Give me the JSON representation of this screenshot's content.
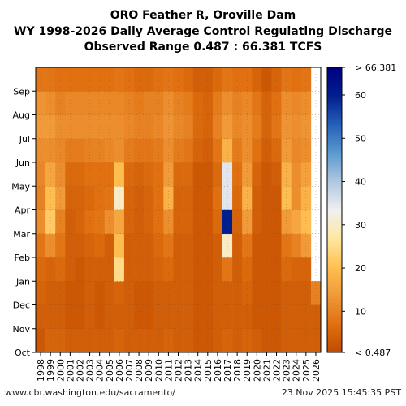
{
  "header": {
    "title_line1": "ORO Feather R, Oroville Dam",
    "title_line2": "WY 1998-2026 Daily Average Control Regulating Discharge",
    "title_line3": "Observed Range 0.487 : 66.381 TCFS"
  },
  "footer": {
    "source": "www.cbr.washington.edu/sacramento/",
    "timestamp": "23 Nov 2025 15:45:35 PST"
  },
  "chart_data": {
    "type": "heatmap",
    "title": "ORO Feather R, Oroville Dam",
    "subtitle": "WY 1998-2026 Daily Average Control Regulating Discharge",
    "range_label": "Observed Range 0.487 : 66.381 TCFS",
    "unit": "TCFS",
    "x_categories": [
      "1998",
      "1999",
      "2000",
      "2001",
      "2002",
      "2003",
      "2004",
      "2005",
      "2006",
      "2007",
      "2008",
      "2009",
      "2010",
      "2011",
      "2012",
      "2013",
      "2014",
      "2015",
      "2016",
      "2017",
      "2018",
      "2019",
      "2020",
      "2021",
      "2022",
      "2023",
      "2024",
      "2025",
      "2026"
    ],
    "y_categories": [
      "Oct",
      "Nov",
      "Dec",
      "Jan",
      "Feb",
      "Mar",
      "Apr",
      "May",
      "Jun",
      "Jul",
      "Aug",
      "Sep"
    ],
    "values": [
      [
        3,
        4,
        5,
        6,
        8,
        12,
        10,
        11,
        12,
        14,
        13,
        8
      ],
      [
        5,
        4,
        4,
        5,
        12,
        22,
        20,
        16,
        12,
        14,
        12,
        8
      ],
      [
        5,
        4,
        4,
        6,
        8,
        10,
        14,
        12,
        11,
        12,
        10,
        7
      ],
      [
        4,
        3,
        3,
        4,
        4,
        4,
        5,
        6,
        9,
        12,
        11,
        7
      ],
      [
        4,
        3,
        3,
        3,
        4,
        5,
        5,
        6,
        9,
        12,
        11,
        7
      ],
      [
        4,
        4,
        4,
        4,
        5,
        7,
        6,
        7,
        10,
        12,
        11,
        7
      ],
      [
        4,
        3,
        3,
        4,
        6,
        8,
        7,
        7,
        10,
        12,
        11,
        7
      ],
      [
        4,
        4,
        4,
        4,
        4,
        12,
        8,
        7,
        11,
        12,
        11,
        7
      ],
      [
        5,
        4,
        5,
        25,
        20,
        16,
        30,
        20,
        12,
        12,
        11,
        8
      ],
      [
        4,
        4,
        4,
        4,
        4,
        5,
        5,
        6,
        9,
        11,
        10,
        7
      ],
      [
        4,
        3,
        3,
        4,
        4,
        4,
        4,
        5,
        8,
        10,
        9,
        6
      ],
      [
        4,
        3,
        3,
        4,
        4,
        5,
        5,
        6,
        8,
        10,
        10,
        6
      ],
      [
        4,
        4,
        4,
        5,
        6,
        7,
        7,
        7,
        9,
        11,
        10,
        7
      ],
      [
        5,
        4,
        4,
        6,
        8,
        12,
        18,
        14,
        12,
        13,
        12,
        8
      ],
      [
        4,
        4,
        4,
        4,
        4,
        5,
        5,
        6,
        9,
        11,
        10,
        7
      ],
      [
        4,
        4,
        4,
        4,
        4,
        5,
        5,
        6,
        8,
        10,
        9,
        6
      ],
      [
        3,
        3,
        3,
        3,
        3,
        3,
        3,
        3,
        5,
        6,
        6,
        4
      ],
      [
        3,
        3,
        3,
        3,
        3,
        3,
        3,
        3,
        4,
        5,
        5,
        4
      ],
      [
        4,
        4,
        4,
        4,
        4,
        6,
        7,
        6,
        8,
        10,
        9,
        6
      ],
      [
        5,
        4,
        4,
        8,
        30,
        60,
        35,
        35,
        18,
        14,
        12,
        8
      ],
      [
        4,
        4,
        4,
        4,
        4,
        5,
        6,
        7,
        9,
        11,
        10,
        7
      ],
      [
        5,
        4,
        5,
        6,
        8,
        14,
        18,
        14,
        12,
        12,
        11,
        7
      ],
      [
        4,
        3,
        3,
        3,
        3,
        4,
        4,
        5,
        7,
        9,
        8,
        5
      ],
      [
        3,
        3,
        3,
        3,
        3,
        3,
        3,
        3,
        4,
        5,
        5,
        3
      ],
      [
        3,
        3,
        3,
        3,
        3,
        3,
        3,
        4,
        6,
        8,
        7,
        5
      ],
      [
        4,
        4,
        4,
        6,
        8,
        14,
        20,
        18,
        14,
        13,
        12,
        8
      ],
      [
        4,
        4,
        4,
        5,
        10,
        16,
        12,
        12,
        11,
        12,
        11,
        7
      ],
      [
        4,
        4,
        4,
        5,
        14,
        20,
        18,
        15,
        12,
        13,
        12,
        8
      ],
      [
        4,
        4,
        10,
        null,
        null,
        null,
        null,
        null,
        null,
        null,
        null,
        null
      ]
    ],
    "colorbar": {
      "min": 0.487,
      "max": 66.381,
      "ticks": [
        10,
        20,
        30,
        40,
        50,
        60
      ],
      "min_label": "< 0.487",
      "max_label": "> 66.381",
      "colors": [
        "#c04a00",
        "#e07010",
        "#f09838",
        "#ffc050",
        "#ffe6a0",
        "#f0f0f0",
        "#b0c8e0",
        "#5a9ad0",
        "#2660b8",
        "#002090",
        "#000080"
      ]
    },
    "grid": true
  }
}
